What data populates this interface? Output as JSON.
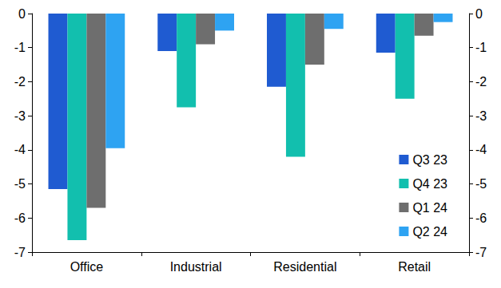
{
  "chart_data": {
    "type": "bar",
    "categories": [
      "Office",
      "Industrial",
      "Residential",
      "Retail"
    ],
    "series": [
      {
        "name": "Q3 23",
        "color": "#1f5bd1",
        "values": [
          -5.15,
          -1.1,
          -2.15,
          -1.15
        ]
      },
      {
        "name": "Q4 23",
        "color": "#12bfae",
        "values": [
          -6.65,
          -2.75,
          -4.2,
          -2.5
        ]
      },
      {
        "name": "Q1 24",
        "color": "#6e6e6e",
        "values": [
          -5.7,
          -0.9,
          -1.5,
          -0.65
        ]
      },
      {
        "name": "Q2 24",
        "color": "#2ea3f2",
        "values": [
          -3.95,
          -0.5,
          -0.45,
          -0.25
        ]
      }
    ],
    "ylim": [
      -7,
      0
    ],
    "yticks": [
      -7,
      -6,
      -5,
      -4,
      -3,
      -2,
      -1,
      0
    ],
    "y2lim": [
      -7,
      0
    ],
    "y2ticks": [
      -7,
      -6,
      -5,
      -4,
      -3,
      -2,
      -1,
      0
    ],
    "grid": false,
    "legend": "lower right"
  }
}
